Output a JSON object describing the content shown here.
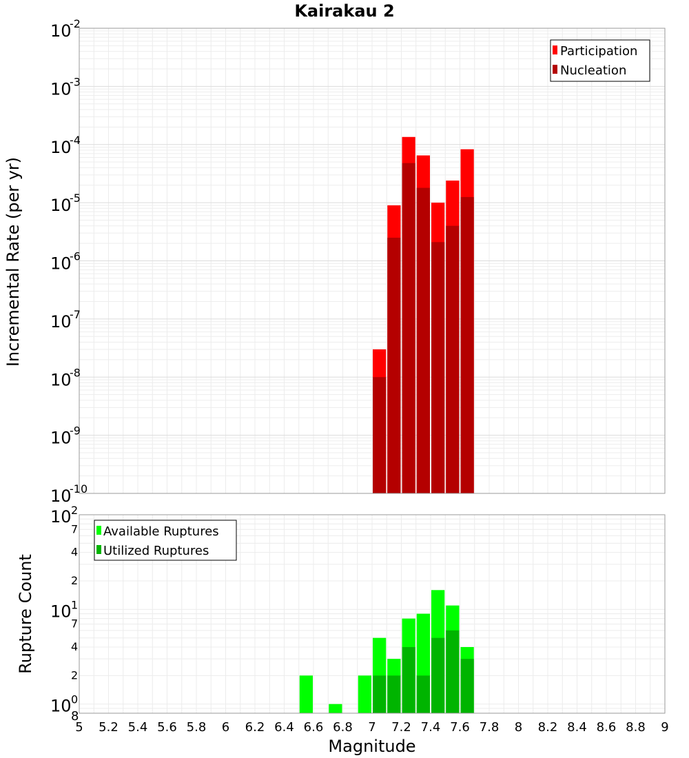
{
  "chart_data": [
    {
      "type": "bar",
      "scale": "log",
      "title": "Kairakau 2",
      "xlabel": "",
      "ylabel": "Incremental Rate (per yr)",
      "xlim": [
        5,
        9
      ],
      "ylim_exp": [
        -10,
        -2
      ],
      "y_ticks": [
        {
          "base": "10",
          "exp": "-2"
        },
        {
          "base": "10",
          "exp": "-3"
        },
        {
          "base": "10",
          "exp": "-4"
        },
        {
          "base": "10",
          "exp": "-5"
        },
        {
          "base": "10",
          "exp": "-6"
        },
        {
          "base": "10",
          "exp": "-7"
        },
        {
          "base": "10",
          "exp": "-8"
        },
        {
          "base": "10",
          "exp": "-9"
        },
        {
          "base": "10",
          "exp": "-10"
        }
      ],
      "categories": [
        7.05,
        7.15,
        7.25,
        7.35,
        7.45,
        7.55,
        7.65
      ],
      "series": [
        {
          "name": "Participation",
          "color": "#ff0000",
          "values": [
            3e-08,
            9e-06,
            0.000135,
            6.5e-05,
            1e-05,
            2.4e-05,
            8.3e-05
          ]
        },
        {
          "name": "Nucleation",
          "color": "#b40000",
          "values": [
            1e-08,
            2.5e-06,
            4.8e-05,
            1.8e-05,
            2.1e-06,
            4e-06,
            1.25e-05
          ]
        }
      ],
      "legend": {
        "position": "top-right"
      }
    },
    {
      "type": "bar",
      "scale": "log",
      "title": "",
      "xlabel": "Magnitude",
      "ylabel": "Rupture Count",
      "xlim": [
        5,
        9
      ],
      "ylim": [
        0.8,
        100
      ],
      "x_ticks": [
        "5",
        "5.2",
        "5.4",
        "5.6",
        "5.8",
        "6",
        "6.2",
        "6.4",
        "6.6",
        "6.8",
        "7",
        "7.2",
        "7.4",
        "7.6",
        "7.8",
        "8",
        "8.2",
        "8.4",
        "8.6",
        "8.8",
        "9"
      ],
      "y_major_ticks": [
        {
          "base": "10",
          "exp": "2",
          "value": 100
        },
        {
          "base": "10",
          "exp": "1",
          "value": 10
        },
        {
          "base": "10",
          "exp": "0",
          "value": 1
        }
      ],
      "y_minor_ticks": [
        {
          "label": "7",
          "value": 70
        },
        {
          "label": "4",
          "value": 40
        },
        {
          "label": "2",
          "value": 20
        },
        {
          "label": "7",
          "value": 7
        },
        {
          "label": "4",
          "value": 4
        },
        {
          "label": "2",
          "value": 2
        },
        {
          "label": "8",
          "value": 0.8
        }
      ],
      "categories": [
        6.55,
        6.75,
        6.95,
        7.05,
        7.15,
        7.25,
        7.35,
        7.45,
        7.55,
        7.65
      ],
      "series": [
        {
          "name": "Available Ruptures",
          "color": "#00ff00",
          "values": [
            2,
            1,
            2,
            5,
            3,
            8,
            9,
            16,
            11,
            4
          ]
        },
        {
          "name": "Utilized Ruptures",
          "color": "#00b400",
          "values": [
            0,
            0,
            0,
            2,
            2,
            4,
            2,
            5,
            6,
            3
          ]
        }
      ],
      "legend": {
        "position": "top-left"
      }
    }
  ]
}
